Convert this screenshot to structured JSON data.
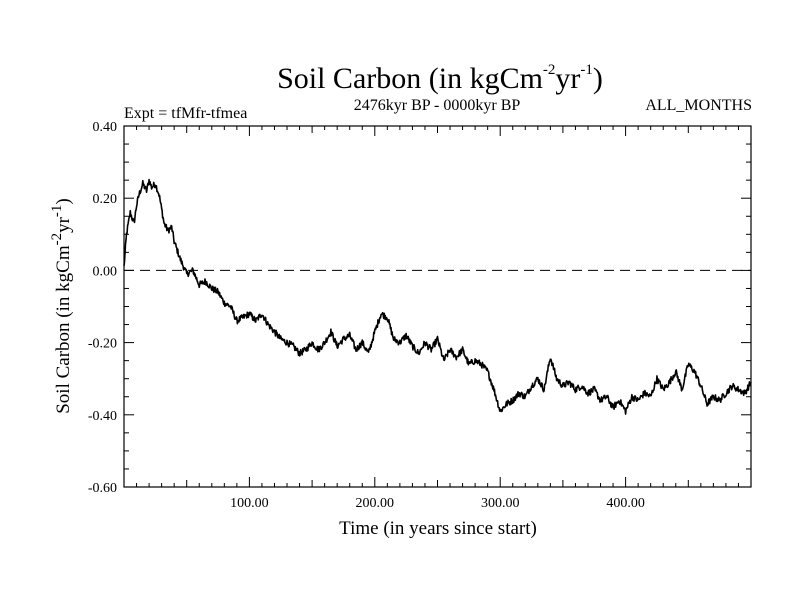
{
  "chart_data": {
    "type": "line",
    "title_main": "Soil Carbon (in kgCm",
    "title_sup1": "-2",
    "title_mid": "yr",
    "title_sup2": "-1",
    "title_end": ")",
    "subtitle_left": "Expt = tfMfr-tfmea",
    "subtitle_center": "2476kyr BP - 0000kyr BP",
    "subtitle_right": "ALL_MONTHS",
    "xlabel": "Time (in years since start)",
    "ylabel_main": "Soil Carbon (in kgCm",
    "ylabel_sup1": "-2",
    "ylabel_mid": "yr",
    "ylabel_sup2": "-1",
    "ylabel_end": ")",
    "xlim": [
      0,
      500
    ],
    "ylim": [
      -0.6,
      0.4
    ],
    "x_ticks": [
      100,
      200,
      300,
      400
    ],
    "x_tick_labels": [
      "100.00",
      "200.00",
      "300.00",
      "400.00"
    ],
    "y_ticks": [
      0.4,
      0.2,
      0.0,
      -0.2,
      -0.4,
      -0.6
    ],
    "y_tick_labels": [
      "0.40",
      "0.20",
      "0.00",
      "-0.20",
      "-0.40",
      "-0.60"
    ],
    "reference_line": {
      "y": 0.0,
      "style": "dashed"
    },
    "series": [
      {
        "name": "Soil Carbon",
        "x": [
          0,
          2,
          5,
          8,
          10,
          12,
          15,
          18,
          20,
          22,
          25,
          28,
          30,
          32,
          35,
          38,
          40,
          45,
          50,
          55,
          60,
          65,
          70,
          75,
          80,
          85,
          90,
          95,
          100,
          105,
          110,
          115,
          120,
          125,
          130,
          135,
          140,
          145,
          150,
          155,
          160,
          165,
          170,
          175,
          180,
          185,
          190,
          195,
          200,
          205,
          210,
          215,
          220,
          225,
          230,
          235,
          240,
          245,
          250,
          255,
          260,
          265,
          270,
          275,
          280,
          285,
          290,
          295,
          300,
          305,
          310,
          315,
          320,
          325,
          330,
          335,
          340,
          345,
          350,
          355,
          360,
          365,
          370,
          375,
          380,
          385,
          390,
          395,
          400,
          405,
          410,
          415,
          420,
          425,
          430,
          435,
          440,
          445,
          450,
          455,
          460,
          465,
          470,
          475,
          480,
          485,
          490,
          495,
          500
        ],
        "y": [
          0.01,
          0.1,
          0.16,
          0.13,
          0.18,
          0.21,
          0.24,
          0.22,
          0.25,
          0.23,
          0.24,
          0.21,
          0.17,
          0.13,
          0.11,
          0.12,
          0.08,
          0.03,
          -0.01,
          0.0,
          -0.04,
          -0.03,
          -0.05,
          -0.06,
          -0.09,
          -0.1,
          -0.14,
          -0.13,
          -0.12,
          -0.14,
          -0.12,
          -0.15,
          -0.17,
          -0.19,
          -0.2,
          -0.21,
          -0.23,
          -0.22,
          -0.2,
          -0.22,
          -0.2,
          -0.17,
          -0.21,
          -0.19,
          -0.18,
          -0.22,
          -0.2,
          -0.23,
          -0.17,
          -0.12,
          -0.13,
          -0.19,
          -0.2,
          -0.18,
          -0.21,
          -0.23,
          -0.2,
          -0.22,
          -0.19,
          -0.25,
          -0.22,
          -0.24,
          -0.22,
          -0.26,
          -0.25,
          -0.26,
          -0.28,
          -0.33,
          -0.39,
          -0.37,
          -0.36,
          -0.34,
          -0.35,
          -0.32,
          -0.3,
          -0.33,
          -0.24,
          -0.3,
          -0.32,
          -0.31,
          -0.33,
          -0.32,
          -0.34,
          -0.33,
          -0.36,
          -0.35,
          -0.38,
          -0.36,
          -0.39,
          -0.35,
          -0.36,
          -0.34,
          -0.35,
          -0.3,
          -0.33,
          -0.31,
          -0.28,
          -0.33,
          -0.26,
          -0.28,
          -0.32,
          -0.37,
          -0.35,
          -0.36,
          -0.34,
          -0.32,
          -0.33,
          -0.34,
          -0.31
        ]
      }
    ]
  }
}
